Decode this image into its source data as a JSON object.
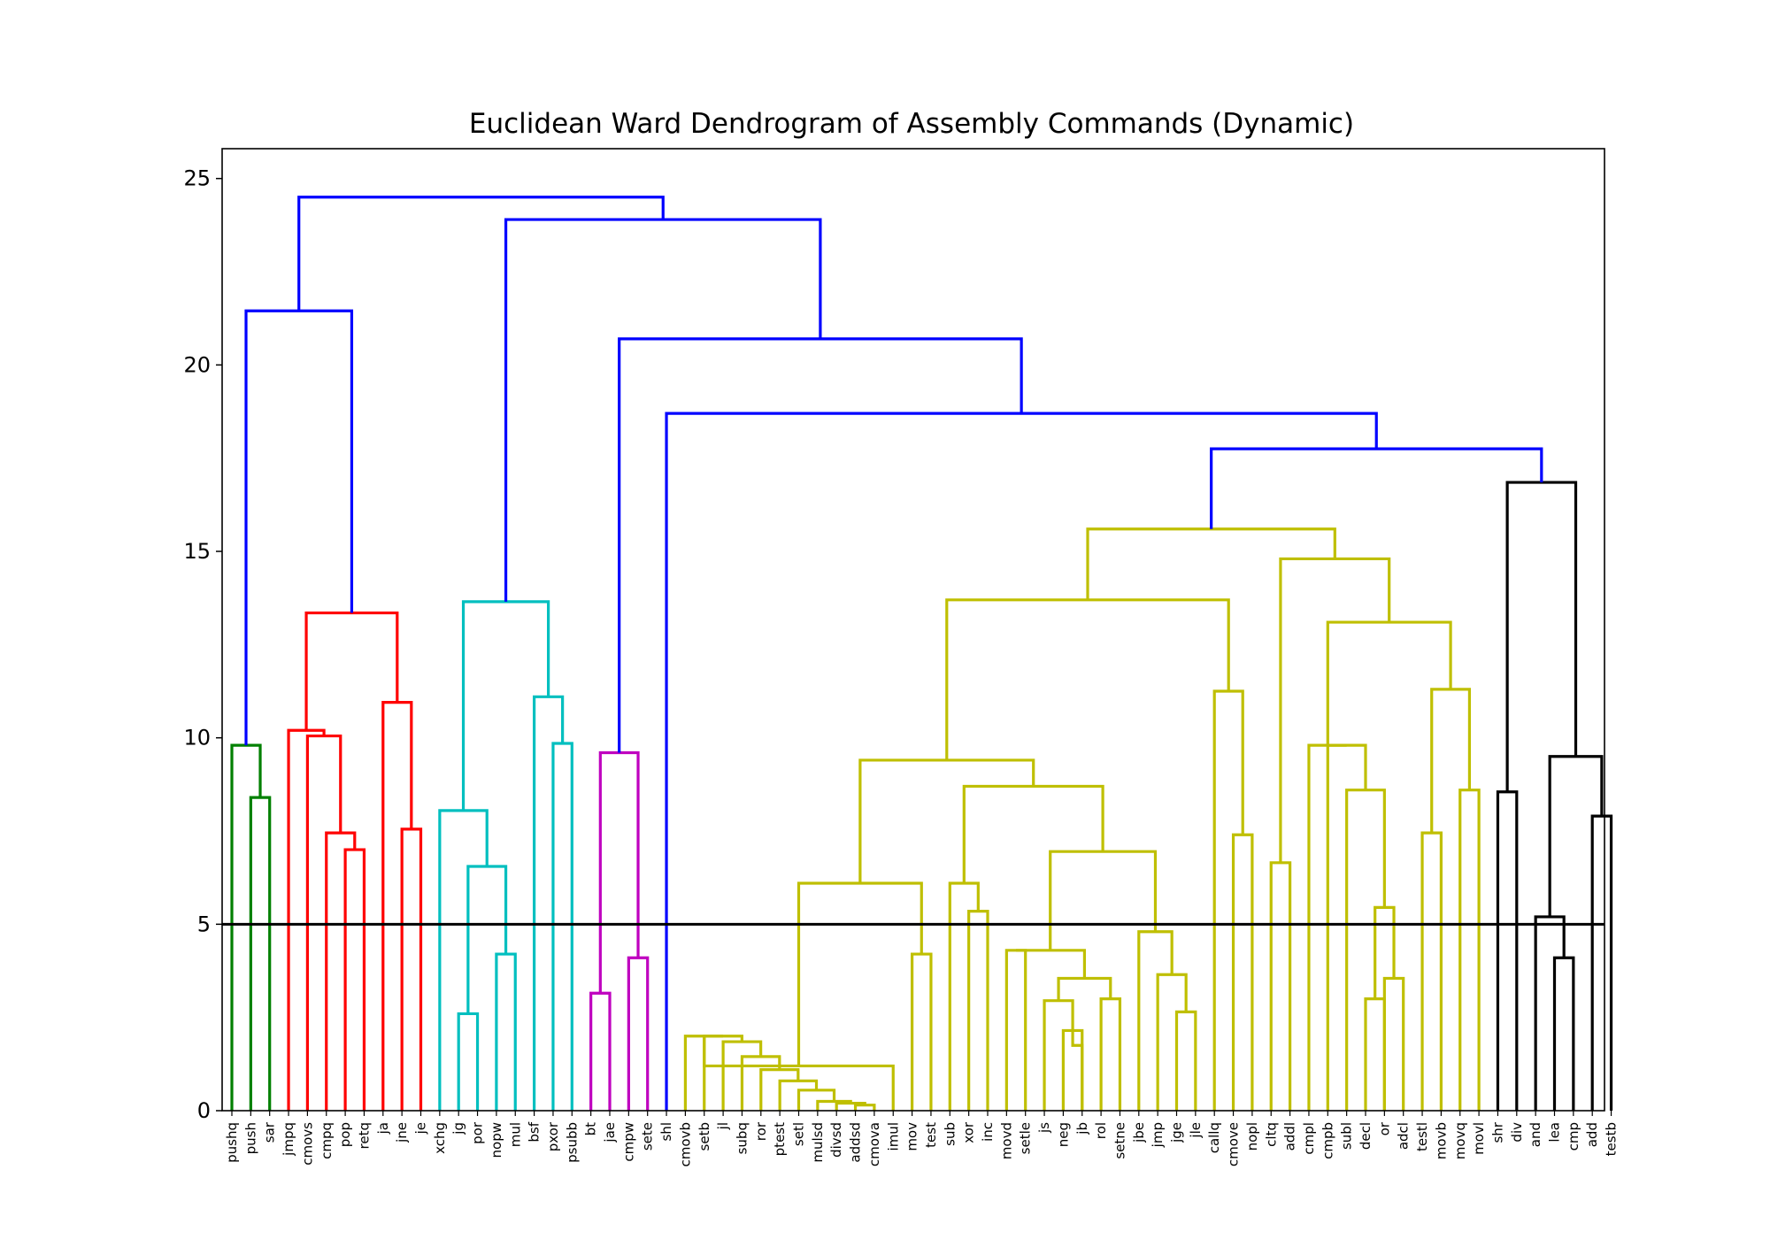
{
  "chart_data": {
    "type": "dendrogram",
    "title": "Euclidean Ward Dendrogram of Assembly Commands (Dynamic)",
    "xlabel": "",
    "ylabel": "",
    "ylim": [
      0,
      25.8
    ],
    "y_ticks": [
      0,
      5,
      10,
      15,
      20,
      25
    ],
    "y_tick_labels": [
      "0",
      "5",
      "10",
      "15",
      "20",
      "25"
    ],
    "threshold": 5,
    "threshold_color": "#000000",
    "grid": false,
    "colors": {
      "link_above": "#0000ff",
      "green": "#008000",
      "red": "#ff0000",
      "cyan": "#00bfbf",
      "magenta": "#bf00bf",
      "olive": "#bfbf00",
      "black": "#000000"
    },
    "leaves": [
      "pushq",
      "push",
      "sar",
      "jmpq",
      "cmovs",
      "cmpq",
      "pop",
      "retq",
      "ja",
      "jne",
      "je",
      "xchg",
      "jg",
      "por",
      "nopw",
      "mul",
      "bsf",
      "pxor",
      "psubb",
      "bt",
      "jae",
      "cmpw",
      "sete",
      "shl",
      "cmovb",
      "setb",
      "jl",
      "subq",
      "ror",
      "ptest",
      "setl",
      "mulsd",
      "divsd",
      "addsd",
      "cmova",
      "imul",
      "mov",
      "test",
      "sub",
      "xor",
      "inc",
      "movd",
      "setle",
      "js",
      "neg",
      "jb",
      "rol",
      "setne",
      "jbe",
      "jmp",
      "jge",
      "jle",
      "callq",
      "cmove",
      "nopl",
      "cltq",
      "addl",
      "cmpl",
      "cmpb",
      "subl",
      "decl",
      "or",
      "adcl",
      "testl",
      "movb",
      "movq",
      "movl",
      "shr",
      "div",
      "and",
      "lea",
      "cmp",
      "add",
      "testb"
    ],
    "links": [
      {
        "a": "pushq",
        "b": "push",
        "h": 9.8,
        "color": "#008000"
      },
      {
        "a": "sar",
        "b": "push|pushq",
        "h": 8.4,
        "color": "#008000",
        "note": "push-sar"
      },
      {
        "a": "jmpq",
        "b": "cmovs",
        "h": 10.2,
        "color": "#ff0000"
      },
      {
        "a": "cmpq",
        "b": "pop",
        "h": 7.45,
        "color": "#ff0000"
      },
      {
        "a": "pop",
        "b": "retq",
        "h": 7.0,
        "color": "#ff0000"
      },
      {
        "a": "jne",
        "b": "je",
        "h": 7.55,
        "color": "#ff0000"
      },
      {
        "a": "ja",
        "b": "jne",
        "h": 10.95,
        "color": "#ff0000"
      },
      {
        "a": "jmpq",
        "b": "ja",
        "h": 13.35,
        "color": "#ff0000"
      },
      {
        "a": "jg",
        "b": "por",
        "h": 2.6,
        "color": "#00bfbf"
      },
      {
        "a": "nopw",
        "b": "mul",
        "h": 4.2,
        "color": "#00bfbf"
      },
      {
        "a": "xchg",
        "b": "jg",
        "h": 8.05,
        "color": "#00bfbf"
      },
      {
        "a": "pxor",
        "b": "psubb",
        "h": 9.85,
        "color": "#00bfbf"
      },
      {
        "a": "bsf",
        "b": "pxor",
        "h": 11.1,
        "color": "#00bfbf"
      },
      {
        "a": "bt",
        "b": "jae",
        "h": 3.15,
        "color": "#bf00bf"
      },
      {
        "a": "cmpw",
        "b": "sete",
        "h": 4.1,
        "color": "#bf00bf"
      },
      {
        "a": "mov",
        "b": "test",
        "h": 4.2,
        "color": "#bfbf00"
      },
      {
        "a": "sub",
        "b": "xor",
        "h": 6.1,
        "color": "#bfbf00"
      },
      {
        "a": "xor",
        "b": "inc",
        "h": 5.35,
        "color": "#bfbf00"
      },
      {
        "a": "movd",
        "b": "setle",
        "h": 4.3,
        "color": "#bfbf00"
      },
      {
        "a": "jbe",
        "b": "jmp",
        "h": 4.8,
        "color": "#bfbf00"
      },
      {
        "a": "callq",
        "b": "cmove",
        "h": 11.25,
        "color": "#bfbf00"
      },
      {
        "a": "cmove",
        "b": "nopl",
        "h": 7.4,
        "color": "#bfbf00"
      },
      {
        "a": "cltq",
        "b": "addl",
        "h": 6.65,
        "color": "#bfbf00"
      },
      {
        "a": "cmpl",
        "b": "cmpb",
        "h": 9.8,
        "color": "#bfbf00"
      },
      {
        "a": "decl",
        "b": "or",
        "h": 5.45,
        "color": "#bfbf00"
      },
      {
        "a": "testl",
        "b": "movb",
        "h": 7.45,
        "color": "#bfbf00"
      },
      {
        "a": "movq",
        "b": "movl",
        "h": 8.6,
        "color": "#bfbf00"
      },
      {
        "a": "shr",
        "b": "div",
        "h": 8.55,
        "color": "#000000"
      },
      {
        "a": "add",
        "b": "testb",
        "h": 7.9,
        "color": "#000000"
      },
      {
        "a": "lea",
        "b": "cmp",
        "h": 4.1,
        "color": "#000000"
      }
    ]
  }
}
